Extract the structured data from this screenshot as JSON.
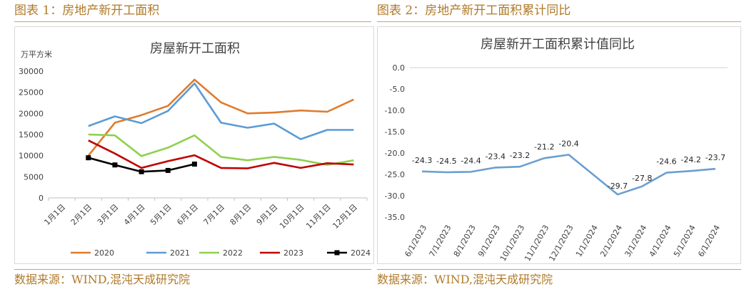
{
  "left": {
    "caption": "图表 1：房地产新开工面积",
    "source": "数据来源：WIND,混沌天成研究院"
  },
  "right": {
    "caption": "图表 2：房地产新开工面积累计同比",
    "source": "数据来源：WIND,混沌天成研究院"
  },
  "chart_data": [
    {
      "type": "line",
      "title": "房屋新开工面积",
      "ylabel": "万平方米",
      "xlabel": "",
      "categories": [
        "1月1日",
        "2月1日",
        "3月1日",
        "4月1日",
        "5月1日",
        "6月1日",
        "7月1日",
        "8月1日",
        "9月1日",
        "10月1日",
        "11月1日",
        "12月1日"
      ],
      "ylim": [
        0,
        30000
      ],
      "yticks": [
        "0",
        "5000",
        "10000",
        "15000",
        "20000",
        "25000",
        "30000"
      ],
      "grid": false,
      "legend": "bottom",
      "series": [
        {
          "name": "2020",
          "color": "#e07b2c",
          "marker": "none",
          "values": [
            null,
            10000,
            17800,
            19600,
            21800,
            28000,
            22600,
            20000,
            20200,
            20700,
            20400,
            23300
          ]
        },
        {
          "name": "2021",
          "color": "#5b9bd5",
          "marker": "none",
          "values": [
            null,
            17000,
            19300,
            17700,
            20600,
            27100,
            17800,
            16600,
            17600,
            13900,
            16100,
            16100
          ]
        },
        {
          "name": "2022",
          "color": "#8fd14f",
          "marker": "none",
          "values": [
            null,
            15000,
            14800,
            9900,
            11900,
            14800,
            9700,
            8900,
            9700,
            9000,
            7800,
            8900
          ]
        },
        {
          "name": "2023",
          "color": "#c00000",
          "marker": "none",
          "values": [
            null,
            13600,
            10500,
            7100,
            8700,
            10100,
            7100,
            7000,
            8300,
            7100,
            8200,
            7900
          ]
        },
        {
          "name": "2024",
          "color": "#000000",
          "marker": "square",
          "values": [
            null,
            9500,
            7800,
            6200,
            6500,
            8000,
            null,
            null,
            null,
            null,
            null,
            null
          ]
        }
      ]
    },
    {
      "type": "line",
      "title": "房屋新开工面积累计值同比",
      "xlabel": "",
      "ylabel": "",
      "categories": [
        "6/1/2023",
        "7/1/2023",
        "8/1/2023",
        "9/1/2023",
        "10/1/2023",
        "11/1/2023",
        "12/1/2023",
        "1/1/2024",
        "2/1/2024",
        "3/1/2024",
        "4/1/2024",
        "5/1/2024",
        "6/1/2024"
      ],
      "ylim": [
        -35,
        0
      ],
      "yticks": [
        "0.0",
        "-5.0",
        "-10.0",
        "-15.0",
        "-20.0",
        "-25.0",
        "-30.0",
        "-35.0"
      ],
      "grid": false,
      "legend": "none",
      "series": [
        {
          "color": "#6a9fcf",
          "values": [
            -24.3,
            -24.5,
            -24.4,
            -23.4,
            -23.2,
            -21.2,
            -20.4,
            null,
            -29.7,
            -27.8,
            -24.6,
            -24.2,
            -23.7
          ],
          "labels": [
            "-24.3",
            "-24.5",
            "-24.4",
            "-23.4",
            "-23.2",
            "-21.2",
            "-20.4",
            "",
            "-29.7",
            "-27.8",
            "-24.6",
            "-24.2",
            "-23.7"
          ]
        }
      ]
    }
  ]
}
